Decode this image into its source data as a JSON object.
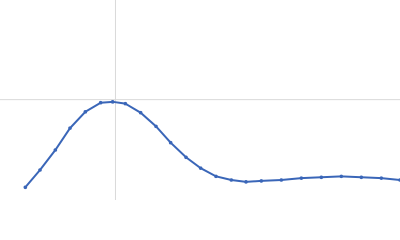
{
  "chart_data": {
    "type": "scatter",
    "x": [
      0.38,
      0.6,
      0.83,
      1.05,
      1.28,
      1.51,
      1.69,
      1.88,
      2.11,
      2.34,
      2.56,
      2.79,
      3.01,
      3.24,
      3.47,
      3.69,
      3.92,
      4.22,
      4.52,
      4.82,
      5.12,
      5.42,
      5.72,
      6.0
    ],
    "values": [
      0.14,
      0.33,
      0.55,
      0.79,
      0.97,
      1.07,
      1.08,
      1.06,
      0.96,
      0.81,
      0.63,
      0.47,
      0.35,
      0.26,
      0.22,
      0.2,
      0.21,
      0.22,
      0.24,
      0.25,
      0.26,
      0.25,
      0.24,
      0.22
    ],
    "color": "#3a66b8",
    "xlim": [
      0,
      6
    ],
    "ylim": [
      0,
      2.2
    ],
    "reference_lines": {
      "x": 1.732,
      "y": 1.104,
      "color": "#d9d9d9"
    }
  }
}
